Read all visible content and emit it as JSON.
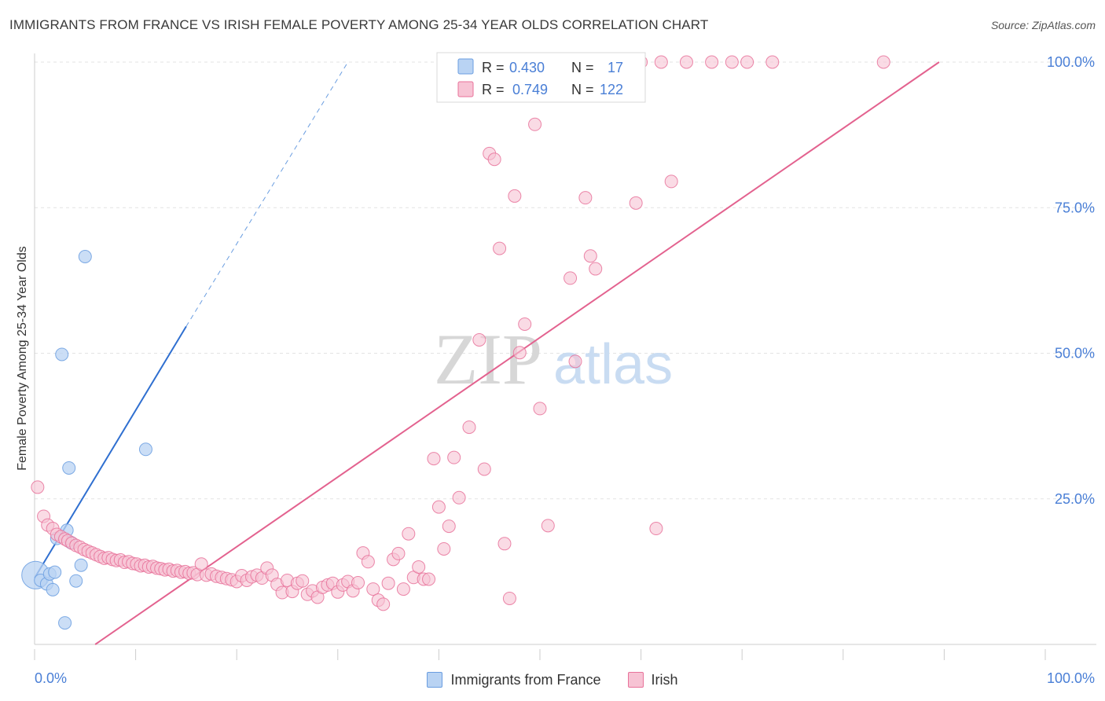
{
  "title": "IMMIGRANTS FROM FRANCE VS IRISH FEMALE POVERTY AMONG 25-34 YEAR OLDS CORRELATION CHART",
  "source": "Source: ZipAtlas.com",
  "watermark": {
    "zip": "ZIP",
    "atlas": "atlas"
  },
  "legend_box": [
    {
      "r_label": "R = ",
      "r_value": "0.430",
      "n_label": "N = ",
      "n_value": "17",
      "color": "#a9c6ef"
    },
    {
      "r_label": "R = ",
      "r_value": "0.749",
      "n_label": "N = ",
      "n_value": "122",
      "color": "#f6b9ce"
    }
  ],
  "chart_data": {
    "type": "scatter",
    "title": "IMMIGRANTS FROM FRANCE VS IRISH FEMALE POVERTY AMONG 25-34 YEAR OLDS CORRELATION CHART",
    "xlabel": "",
    "ylabel": "Female Poverty Among 25-34 Year Olds",
    "xlim": [
      0,
      100
    ],
    "ylim": [
      0,
      100
    ],
    "x_tick_labels": [
      "0.0%",
      "100.0%"
    ],
    "y_tick_labels": [
      "100.0%",
      "75.0%",
      "50.0%",
      "25.0%"
    ],
    "y_ticks": [
      100,
      75,
      50,
      25
    ],
    "grid": true,
    "legend_position": "bottom",
    "series": [
      {
        "name": "Immigrants from France",
        "color": "#6a9de0",
        "fill": "#b9d3f3",
        "r": 0.43,
        "n": 17,
        "points": [
          [
            0.1,
            11.9,
            2.2
          ],
          [
            0.6,
            11.0,
            1
          ],
          [
            1.2,
            10.4,
            1
          ],
          [
            1.5,
            12.1,
            1
          ],
          [
            1.8,
            9.4,
            1
          ],
          [
            2.0,
            12.4,
            1
          ],
          [
            2.2,
            18.2,
            1
          ],
          [
            2.7,
            49.8,
            1
          ],
          [
            3.0,
            3.7,
            1
          ],
          [
            3.2,
            19.6,
            1
          ],
          [
            3.4,
            30.3,
            1
          ],
          [
            3.6,
            17.5,
            1
          ],
          [
            4.1,
            10.9,
            1
          ],
          [
            4.6,
            13.6,
            1
          ],
          [
            5.0,
            66.6,
            1
          ],
          [
            11.0,
            33.5,
            1
          ]
        ],
        "trend": {
          "x0": 0.0,
          "y0": 11.4,
          "x1": 15.0,
          "y1": 54.6,
          "dashed_to_x": 31.0,
          "dashed_to_y": 100.0
        }
      },
      {
        "name": "Irish",
        "color": "#e8729a",
        "fill": "#f7c3d4",
        "r": 0.749,
        "n": 122,
        "points": [
          [
            0.3,
            27.0
          ],
          [
            0.9,
            22.0
          ],
          [
            1.3,
            20.5
          ],
          [
            1.8,
            19.9
          ],
          [
            2.2,
            18.9
          ],
          [
            2.6,
            18.5
          ],
          [
            3.0,
            18.1
          ],
          [
            3.3,
            17.8
          ],
          [
            3.7,
            17.4
          ],
          [
            4.1,
            17.0
          ],
          [
            4.5,
            16.7
          ],
          [
            4.9,
            16.3
          ],
          [
            5.3,
            16.0
          ],
          [
            5.7,
            15.7
          ],
          [
            6.1,
            15.4
          ],
          [
            6.5,
            15.1
          ],
          [
            6.9,
            14.8
          ],
          [
            7.3,
            14.9
          ],
          [
            7.7,
            14.6
          ],
          [
            8.1,
            14.4
          ],
          [
            8.5,
            14.5
          ],
          [
            8.9,
            14.1
          ],
          [
            9.3,
            14.2
          ],
          [
            9.7,
            13.9
          ],
          [
            10.1,
            13.8
          ],
          [
            10.5,
            13.5
          ],
          [
            10.9,
            13.6
          ],
          [
            11.3,
            13.3
          ],
          [
            11.7,
            13.4
          ],
          [
            12.1,
            13.1
          ],
          [
            12.5,
            13.0
          ],
          [
            12.9,
            12.8
          ],
          [
            13.3,
            12.9
          ],
          [
            13.7,
            12.6
          ],
          [
            14.1,
            12.7
          ],
          [
            14.5,
            12.4
          ],
          [
            14.9,
            12.5
          ],
          [
            15.3,
            12.2
          ],
          [
            15.7,
            12.3
          ],
          [
            16.1,
            12.0
          ],
          [
            16.5,
            13.8
          ],
          [
            17.0,
            11.9
          ],
          [
            17.5,
            12.1
          ],
          [
            18.0,
            11.7
          ],
          [
            18.5,
            11.5
          ],
          [
            19.0,
            11.3
          ],
          [
            19.5,
            11.1
          ],
          [
            20.0,
            10.8
          ],
          [
            20.5,
            11.8
          ],
          [
            21.0,
            11.0
          ],
          [
            21.5,
            11.6
          ],
          [
            22.0,
            11.9
          ],
          [
            22.5,
            11.4
          ],
          [
            23.0,
            13.1
          ],
          [
            23.5,
            11.9
          ],
          [
            24.0,
            10.3
          ],
          [
            24.5,
            8.9
          ],
          [
            25.0,
            11.0
          ],
          [
            25.5,
            9.1
          ],
          [
            26.0,
            10.5
          ],
          [
            26.5,
            10.9
          ],
          [
            27.0,
            8.6
          ],
          [
            27.5,
            9.2
          ],
          [
            28.0,
            8.1
          ],
          [
            28.5,
            9.8
          ],
          [
            29.0,
            10.2
          ],
          [
            29.5,
            10.5
          ],
          [
            30.0,
            9.0
          ],
          [
            30.5,
            10.2
          ],
          [
            31.0,
            10.8
          ],
          [
            31.5,
            9.2
          ],
          [
            32.0,
            10.6
          ],
          [
            32.5,
            15.7
          ],
          [
            33.0,
            14.2
          ],
          [
            33.5,
            9.5
          ],
          [
            34.0,
            7.6
          ],
          [
            34.5,
            6.9
          ],
          [
            35.0,
            10.5
          ],
          [
            35.5,
            14.6
          ],
          [
            36.0,
            15.6
          ],
          [
            36.5,
            9.5
          ],
          [
            37.0,
            19.0
          ],
          [
            37.5,
            11.5
          ],
          [
            38.0,
            13.3
          ],
          [
            38.5,
            11.2
          ],
          [
            39.0,
            11.2
          ],
          [
            39.5,
            31.9
          ],
          [
            40.0,
            23.6
          ],
          [
            40.5,
            16.4
          ],
          [
            41.0,
            20.3
          ],
          [
            41.5,
            32.1
          ],
          [
            42.0,
            25.2
          ],
          [
            43.0,
            37.3
          ],
          [
            44.0,
            52.3
          ],
          [
            44.5,
            30.1
          ],
          [
            45.0,
            84.3
          ],
          [
            45.5,
            83.3
          ],
          [
            46.0,
            68.0
          ],
          [
            46.5,
            17.3
          ],
          [
            47.0,
            7.9
          ],
          [
            47.5,
            77.0
          ],
          [
            48.0,
            50.1
          ],
          [
            48.5,
            55.0
          ],
          [
            49.5,
            89.3
          ],
          [
            50.0,
            40.5
          ],
          [
            50.8,
            20.4
          ],
          [
            52.0,
            100.0
          ],
          [
            53.0,
            62.9
          ],
          [
            53.5,
            48.6
          ],
          [
            54.0,
            100.0
          ],
          [
            54.5,
            76.7
          ],
          [
            55.0,
            66.7
          ],
          [
            55.5,
            64.5
          ],
          [
            58.0,
            100.0
          ],
          [
            59.5,
            75.8
          ],
          [
            60.0,
            100.0
          ],
          [
            61.5,
            19.9
          ],
          [
            62.0,
            100.0
          ],
          [
            63.0,
            79.5
          ],
          [
            64.5,
            100.0
          ],
          [
            67.0,
            100.0
          ],
          [
            69.0,
            100.0
          ],
          [
            70.5,
            100.0
          ],
          [
            73.0,
            100.0
          ],
          [
            84.0,
            100.0
          ]
        ],
        "trend": {
          "x0": 6.0,
          "y0": 0.0,
          "x1": 89.5,
          "y1": 100.0
        }
      }
    ]
  }
}
